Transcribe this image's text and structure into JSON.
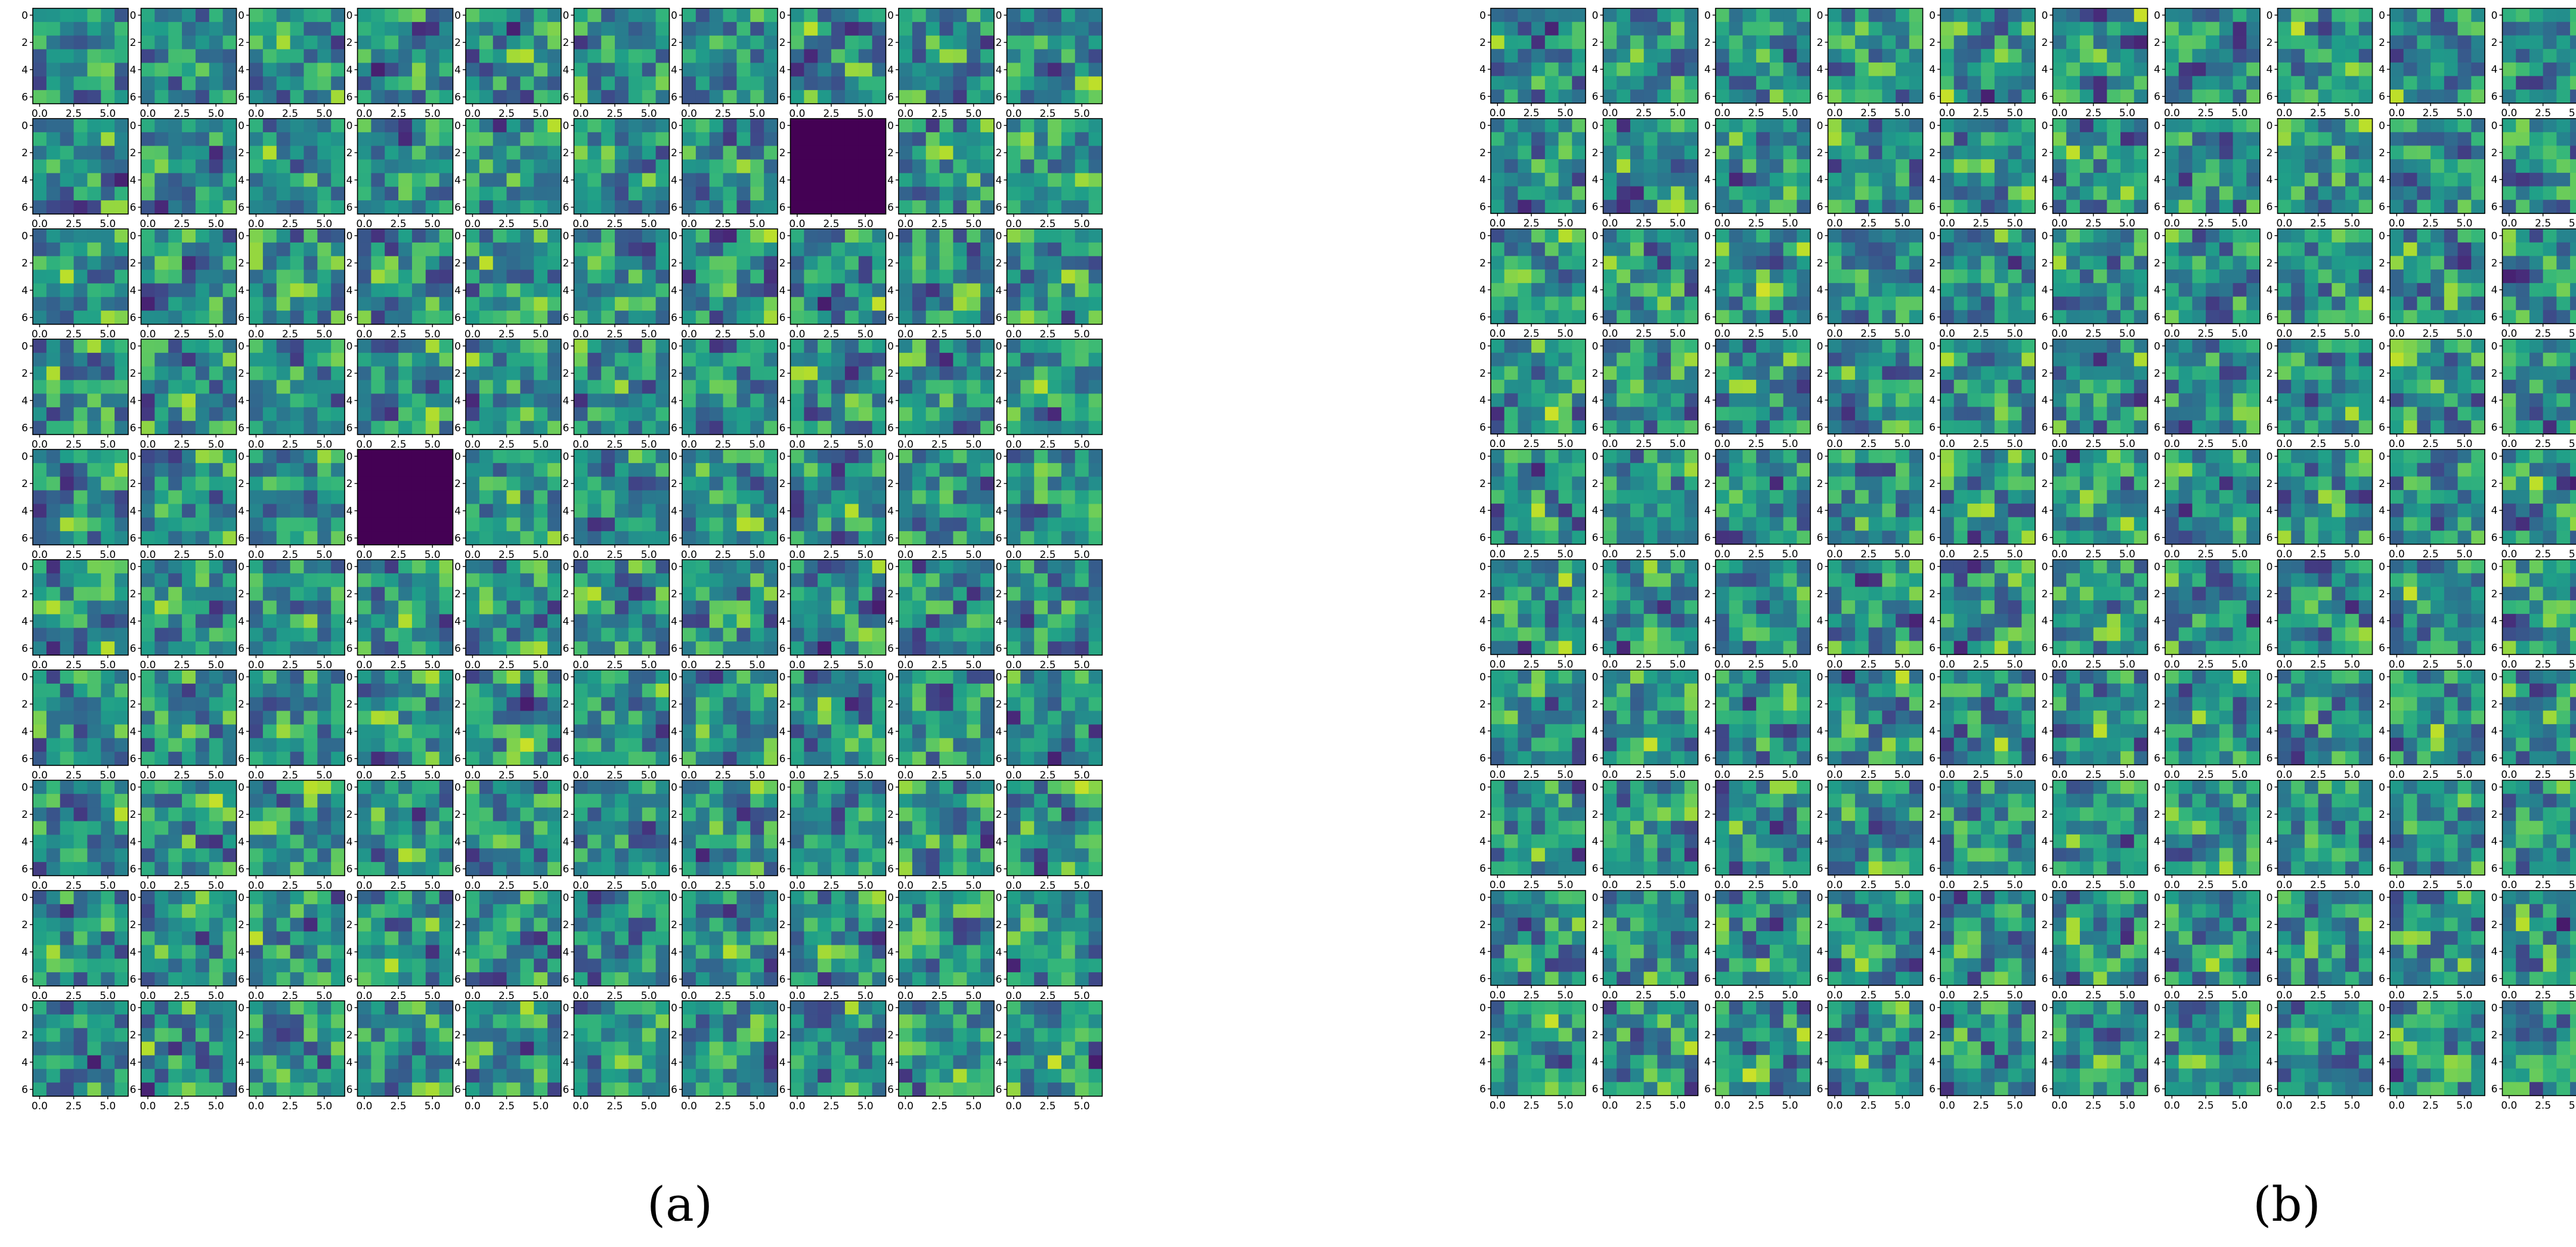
{
  "chart_data": [
    {
      "type": "heatmap",
      "caption": "(a)",
      "grid": {
        "rows": 10,
        "cols": 10
      },
      "cells": {
        "rows": 7,
        "cols": 7
      },
      "colormap": "viridis",
      "x_ticks": [
        "0.0",
        "2.5",
        "5.0"
      ],
      "x_tick_values": [
        0.0,
        2.5,
        5.0
      ],
      "y_ticks": [
        "0",
        "2",
        "4",
        "6"
      ],
      "y_tick_values": [
        0,
        2,
        4,
        6
      ],
      "xlim": [
        -0.5,
        6.5
      ],
      "ylim": [
        6.5,
        -0.5
      ],
      "uniform_panels": [
        {
          "row": 1,
          "col": 7,
          "value": 0.0
        },
        {
          "row": 4,
          "col": 3,
          "value": 0.0
        }
      ],
      "seed": 11
    },
    {
      "type": "heatmap",
      "caption": "(b)",
      "grid": {
        "rows": 10,
        "cols": 10
      },
      "cells": {
        "rows": 7,
        "cols": 7
      },
      "colormap": "viridis",
      "x_ticks": [
        "0.0",
        "2.5",
        "5.0"
      ],
      "x_tick_values": [
        0.0,
        2.5,
        5.0
      ],
      "y_ticks": [
        "0",
        "2",
        "4",
        "6"
      ],
      "y_tick_values": [
        0,
        2,
        4,
        6
      ],
      "xlim": [
        -0.5,
        6.5
      ],
      "ylim": [
        6.5,
        -0.5
      ],
      "uniform_panels": [],
      "seed": 29
    }
  ],
  "colors": {
    "viridis_stops": [
      "#440154",
      "#482878",
      "#3e4989",
      "#31688e",
      "#26828e",
      "#1f9e89",
      "#35b779",
      "#6ece58",
      "#b5de2b",
      "#fde725"
    ]
  }
}
